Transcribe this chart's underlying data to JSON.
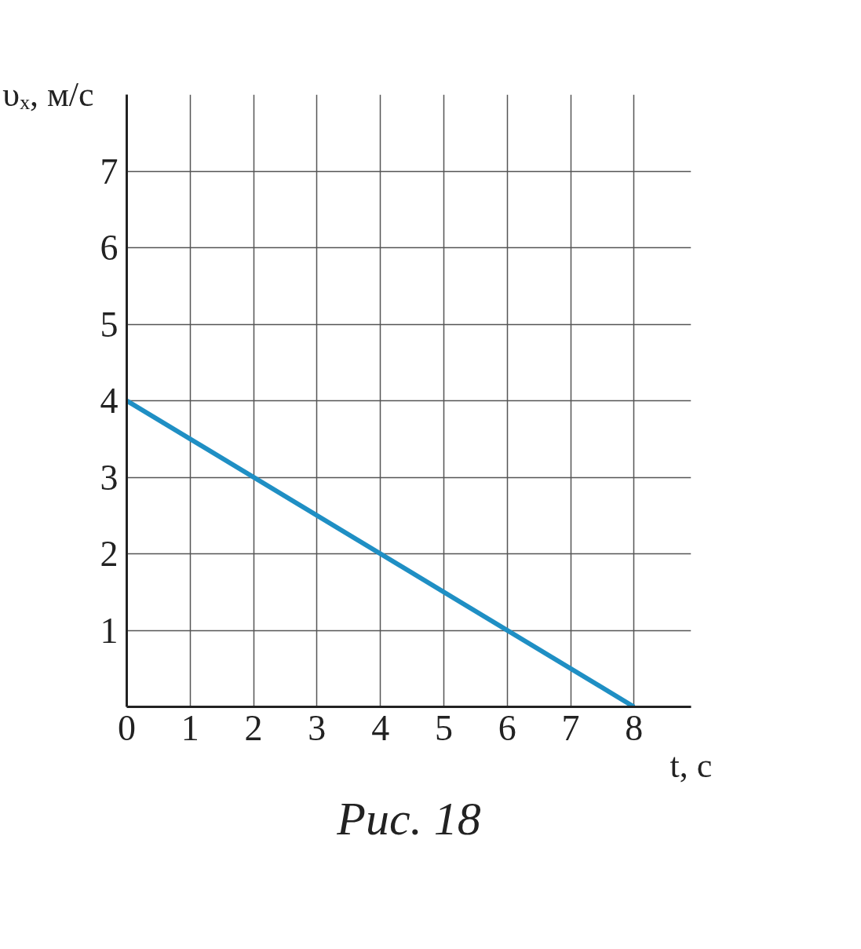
{
  "chart_data": {
    "type": "line",
    "xlabel": "t, с",
    "ylabel": "υₓ, м/с",
    "x": [
      0,
      8
    ],
    "series": [
      {
        "color": "#1f8fc4",
        "values": [
          4,
          0
        ]
      }
    ],
    "xlim": [
      0,
      8.9
    ],
    "ylim": [
      0,
      8.0
    ],
    "xticks": [
      0,
      1,
      2,
      3,
      4,
      5,
      6,
      7,
      8
    ],
    "yticks": [
      1,
      2,
      3,
      4,
      5,
      6,
      7
    ],
    "grid": true,
    "marker": "none",
    "line_style": "solid",
    "annotations": [
      "Рис. 18"
    ]
  }
}
